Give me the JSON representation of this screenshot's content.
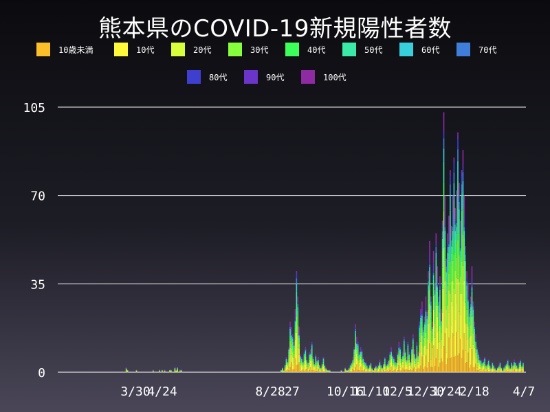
{
  "chart_data": {
    "type": "bar",
    "stacked": true,
    "title": "熊本県のCOVID-19新規陽性者数",
    "xlabel": "",
    "ylabel": "",
    "ylim": [
      0,
      105
    ],
    "yticks": [
      0,
      35,
      70,
      105
    ],
    "xtick_labels": [
      "3/30",
      "4/24",
      "8/28",
      "27",
      "10/16",
      "11/10",
      "12/5",
      "12/30",
      "1/24",
      "2/18",
      "4/7"
    ],
    "grid": true,
    "legend_position": "top",
    "start_date": "2020-03-01",
    "series": [
      {
        "name": "10歳未満",
        "color": "#fbbf2a"
      },
      {
        "name": "10代",
        "color": "#fff93b"
      },
      {
        "name": "20代",
        "color": "#d8ff3b"
      },
      {
        "name": "30代",
        "color": "#86ff3d"
      },
      {
        "name": "40代",
        "color": "#3dff5a"
      },
      {
        "name": "50代",
        "color": "#3beaa6"
      },
      {
        "name": "60代",
        "color": "#38cfdd"
      },
      {
        "name": "70代",
        "color": "#3f7ed9"
      },
      {
        "name": "80代",
        "color": "#3f3fcf"
      },
      {
        "name": "90代",
        "color": "#6a35c8"
      },
      {
        "name": "100代",
        "color": "#8e2aa2"
      }
    ],
    "daily_totals": [
      0,
      0,
      0,
      0,
      0,
      0,
      0,
      0,
      0,
      0,
      0,
      0,
      0,
      0,
      0,
      0,
      0,
      0,
      0,
      0,
      0,
      0,
      0,
      2,
      1,
      0,
      0,
      0,
      0,
      0,
      0,
      1,
      0,
      0,
      0,
      0,
      0,
      0,
      0,
      0,
      0,
      0,
      0,
      0,
      1,
      0,
      0,
      0,
      0,
      1,
      0,
      1,
      0,
      1,
      0,
      0,
      0,
      1,
      1,
      0,
      0,
      2,
      1,
      2,
      0,
      1,
      1,
      0,
      0,
      0,
      0,
      0,
      0,
      0,
      0,
      0,
      0,
      0,
      0,
      0,
      0,
      0,
      0,
      0,
      0,
      0,
      0,
      0,
      0,
      0,
      0,
      0,
      0,
      0,
      0,
      0,
      0,
      0,
      0,
      0,
      0,
      0,
      0,
      0,
      0,
      0,
      0,
      0,
      0,
      0,
      0,
      0,
      0,
      0,
      0,
      0,
      0,
      0,
      0,
      0,
      0,
      0,
      0,
      0,
      0,
      0,
      0,
      0,
      0,
      0,
      0,
      0,
      0,
      0,
      0,
      0,
      0,
      0,
      0,
      0,
      0,
      0,
      0,
      0,
      1,
      2,
      1,
      3,
      6,
      5,
      10,
      20,
      18,
      15,
      12,
      25,
      40,
      30,
      18,
      7,
      6,
      5,
      8,
      10,
      6,
      4,
      8,
      9,
      12,
      6,
      4,
      7,
      5,
      6,
      3,
      2,
      4,
      6,
      3,
      2,
      1,
      1,
      1,
      0,
      0,
      0,
      0,
      0,
      0,
      0,
      0,
      1,
      0,
      0,
      2,
      1,
      1,
      2,
      3,
      4,
      6,
      10,
      19,
      14,
      12,
      8,
      10,
      9,
      6,
      5,
      4,
      3,
      2,
      3,
      4,
      2,
      1,
      2,
      3,
      2,
      3,
      5,
      3,
      2,
      4,
      6,
      3,
      4,
      5,
      8,
      10,
      7,
      6,
      5,
      4,
      8,
      12,
      10,
      6,
      8,
      14,
      9,
      6,
      12,
      8,
      5,
      10,
      15,
      9,
      6,
      12,
      8,
      20,
      25,
      28,
      18,
      22,
      30,
      24,
      40,
      52,
      30,
      20,
      48,
      35,
      55,
      42,
      30,
      38,
      25,
      60,
      103,
      70,
      45,
      55,
      62,
      80,
      58,
      70,
      85,
      65,
      72,
      95,
      75,
      60,
      80,
      88,
      70,
      50,
      40,
      35,
      25,
      30,
      42,
      28,
      20,
      15,
      10,
      8,
      6,
      5,
      4,
      5,
      6,
      3,
      4,
      5,
      3,
      2,
      4,
      3,
      2,
      1,
      2,
      3,
      4,
      2,
      1,
      2,
      3,
      4,
      5,
      3,
      2,
      4,
      3,
      5,
      4,
      3,
      2,
      4,
      5,
      3,
      4
    ]
  }
}
